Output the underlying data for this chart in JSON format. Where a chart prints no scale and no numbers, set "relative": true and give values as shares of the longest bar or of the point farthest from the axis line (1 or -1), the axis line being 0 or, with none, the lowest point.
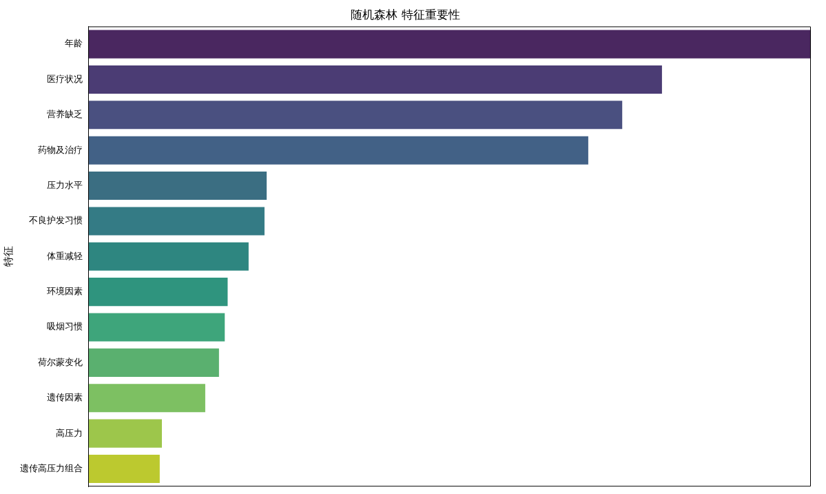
{
  "chart_data": {
    "type": "bar",
    "orientation": "horizontal",
    "relative": true,
    "title": "随机森林 特征重要性",
    "ylabel": "特征",
    "categories": [
      "年龄",
      "医疗状况",
      "营养缺乏",
      "药物及治疗",
      "压力水平",
      "不良护发习惯",
      "体重减轻",
      "环境因素",
      "吸烟习惯",
      "荷尔蒙变化",
      "遗传因素",
      "高压力",
      "遗传高压力组合"
    ],
    "values": [
      1,
      0.794,
      0.739,
      0.692,
      0.247,
      0.244,
      0.222,
      0.193,
      0.189,
      0.181,
      0.162,
      0.102,
      0.099
    ],
    "colors": [
      "#4a2760",
      "#4b3c74",
      "#4a5080",
      "#426186",
      "#3b6e82",
      "#347b85",
      "#2e8680",
      "#2f947e",
      "#3ea57b",
      "#5ab06f",
      "#7dc062",
      "#9dc64b",
      "#bcc92f"
    ],
    "legend": false
  }
}
